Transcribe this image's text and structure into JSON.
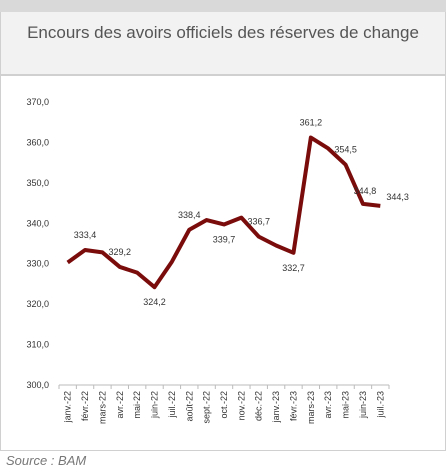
{
  "chart_data": {
    "type": "line",
    "title": "Encours des avoirs officiels des réserves de change",
    "source": "Source : BAM",
    "categories": [
      "janv.-22",
      "févr.-22",
      "mars-22",
      "avr.-22",
      "mai-22",
      "juin-22",
      "juil.-22",
      "août-22",
      "sept.-22",
      "oct.-22",
      "nov.-22",
      "déc.-22",
      "janv.-23",
      "févr.-23",
      "mars-23",
      "avr.-23",
      "mai-23",
      "juin-23",
      "juil.-23"
    ],
    "values": [
      330.3,
      333.4,
      332.8,
      329.2,
      327.8,
      324.2,
      330.5,
      338.4,
      340.8,
      339.7,
      341.4,
      336.7,
      334.5,
      332.7,
      361.2,
      358.5,
      354.5,
      344.8,
      344.3
    ],
    "value_labels": [
      null,
      "333,4",
      null,
      "329,2",
      null,
      "324,2",
      null,
      "338,4",
      null,
      "339,7",
      null,
      "336,7",
      null,
      "332,7",
      "361,2",
      null,
      "354,5",
      "344,8",
      "344,3"
    ],
    "color": "#7a0c0c",
    "ylim": [
      300,
      370
    ],
    "yticks": [
      {
        "value": 300,
        "label": "300,0"
      },
      {
        "value": 310,
        "label": "310,0"
      },
      {
        "value": 320,
        "label": "320,0"
      },
      {
        "value": 330,
        "label": "330,0"
      },
      {
        "value": 340,
        "label": "340,0"
      },
      {
        "value": 350,
        "label": "350,0"
      },
      {
        "value": 360,
        "label": "360,0"
      },
      {
        "value": 370,
        "label": "370,0"
      }
    ]
  }
}
